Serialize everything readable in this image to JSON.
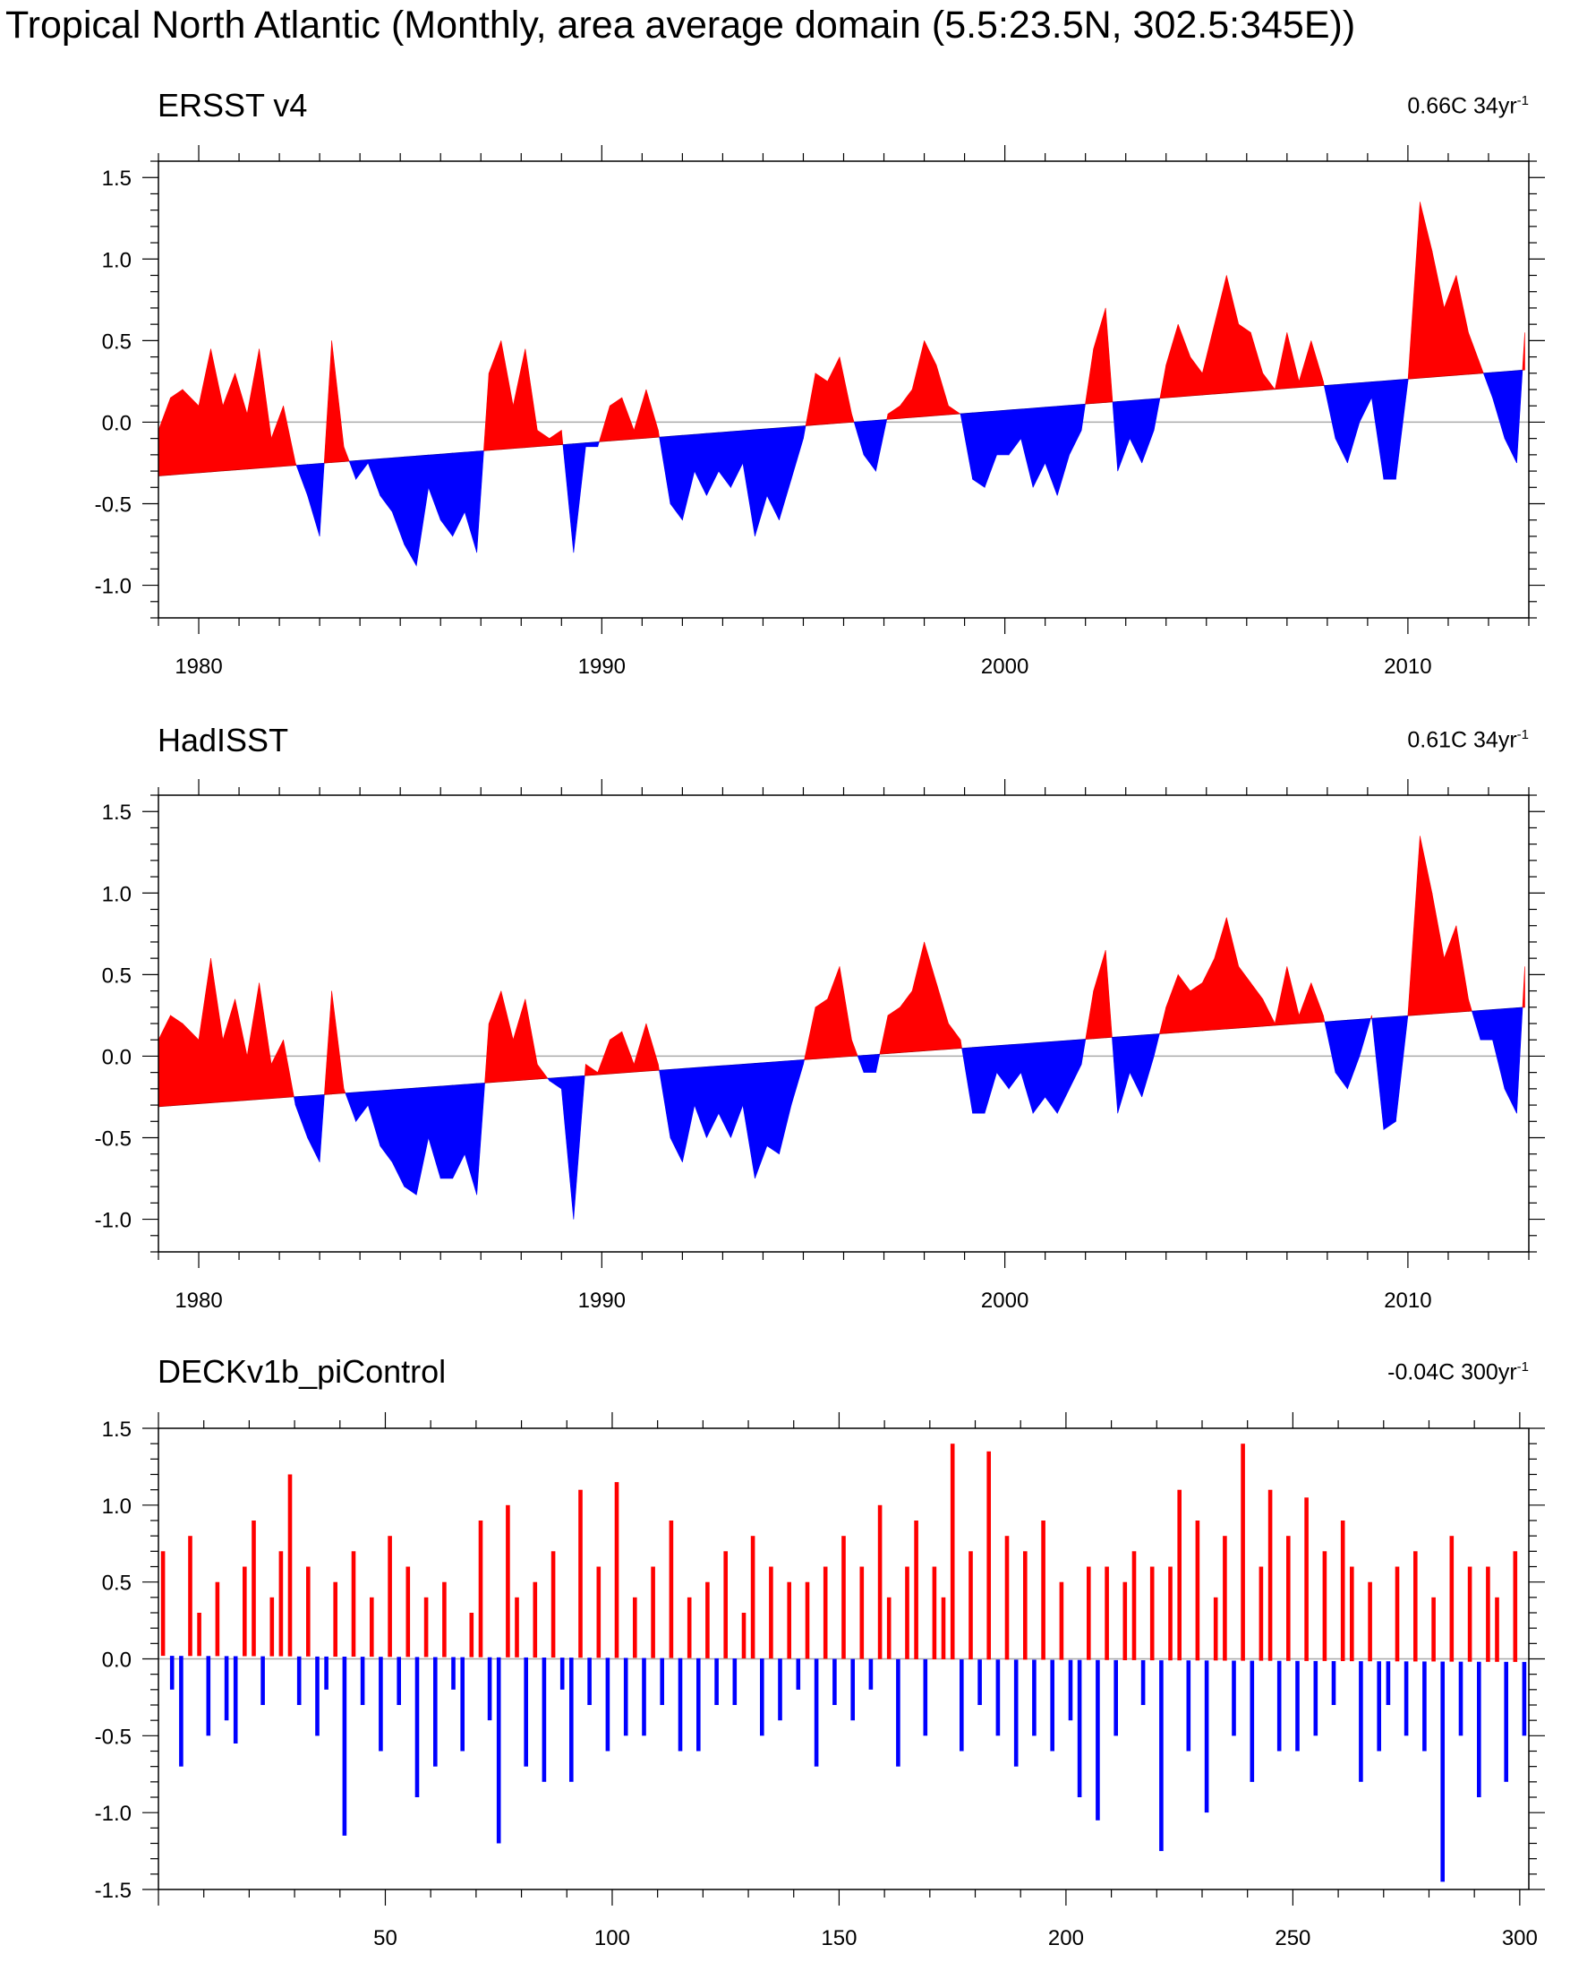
{
  "main_title": "Tropical North Atlantic (Monthly, area average domain (5.5:23.5N, 302.5:345E))",
  "colors": {
    "positive": "#ff0000",
    "negative": "#0000ff",
    "zero_line": "#aaaaaa",
    "frame": "#000000"
  },
  "chart_data": [
    {
      "type": "area",
      "title": "ERSST v4",
      "trend_value": "0.66C 34yr",
      "trend_unit_exponent": "-1",
      "xlim": [
        1979.0,
        2013.0
      ],
      "ylim": [
        -1.2,
        1.6
      ],
      "x_ticks": [
        1980,
        1990,
        2000,
        2010
      ],
      "x_tick_labels": [
        "1980",
        "1990",
        "2000",
        "2010"
      ],
      "y_ticks": [
        -1.0,
        -0.5,
        0.0,
        0.5,
        1.0,
        1.5
      ],
      "y_tick_labels": [
        "-1.0",
        "-0.5",
        "0.0",
        "0.5",
        "1.0",
        "1.5"
      ],
      "baseline": {
        "description": "linear trend",
        "start": [
          1979.0,
          -0.33
        ],
        "end": [
          2012.9,
          0.32
        ]
      },
      "x": [
        1979.0,
        1979.3,
        1979.6,
        1980.0,
        1980.3,
        1980.6,
        1980.9,
        1981.2,
        1981.5,
        1981.8,
        1982.1,
        1982.4,
        1982.7,
        1983.0,
        1983.3,
        1983.6,
        1983.9,
        1984.2,
        1984.5,
        1984.8,
        1985.1,
        1985.4,
        1985.7,
        1986.0,
        1986.3,
        1986.6,
        1986.9,
        1987.2,
        1987.5,
        1987.8,
        1988.1,
        1988.4,
        1988.7,
        1989.0,
        1989.3,
        1989.6,
        1989.9,
        1990.2,
        1990.5,
        1990.8,
        1991.1,
        1991.4,
        1991.7,
        1992.0,
        1992.3,
        1992.6,
        1992.9,
        1993.2,
        1993.5,
        1993.8,
        1994.1,
        1994.4,
        1994.7,
        1995.0,
        1995.3,
        1995.6,
        1995.9,
        1996.2,
        1996.5,
        1996.8,
        1997.1,
        1997.4,
        1997.7,
        1998.0,
        1998.3,
        1998.6,
        1998.9,
        1999.2,
        1999.5,
        1999.8,
        2000.1,
        2000.4,
        2000.7,
        2001.0,
        2001.3,
        2001.6,
        2001.9,
        2002.2,
        2002.5,
        2002.8,
        2003.1,
        2003.4,
        2003.7,
        2004.0,
        2004.3,
        2004.6,
        2004.9,
        2005.2,
        2005.5,
        2005.8,
        2006.1,
        2006.4,
        2006.7,
        2007.0,
        2007.3,
        2007.6,
        2007.9,
        2008.2,
        2008.5,
        2008.8,
        2009.1,
        2009.4,
        2009.7,
        2010.0,
        2010.3,
        2010.6,
        2010.9,
        2011.2,
        2011.5,
        2011.8,
        2012.1,
        2012.4,
        2012.7,
        2012.9
      ],
      "values": [
        -0.05,
        0.15,
        0.2,
        0.1,
        0.45,
        0.1,
        0.3,
        0.05,
        0.45,
        -0.1,
        0.1,
        -0.25,
        -0.45,
        -0.7,
        0.5,
        -0.15,
        -0.35,
        -0.25,
        -0.45,
        -0.55,
        -0.75,
        -0.88,
        -0.4,
        -0.6,
        -0.7,
        -0.55,
        -0.8,
        0.3,
        0.5,
        0.1,
        0.45,
        -0.05,
        -0.1,
        -0.05,
        -0.8,
        -0.15,
        -0.15,
        0.1,
        0.15,
        -0.05,
        0.2,
        -0.05,
        -0.5,
        -0.6,
        -0.3,
        -0.45,
        -0.3,
        -0.4,
        -0.25,
        -0.7,
        -0.45,
        -0.6,
        -0.35,
        -0.1,
        0.3,
        0.25,
        0.4,
        0.05,
        -0.2,
        -0.3,
        0.05,
        0.1,
        0.2,
        0.5,
        0.35,
        0.1,
        0.05,
        -0.35,
        -0.4,
        -0.2,
        -0.2,
        -0.1,
        -0.4,
        -0.25,
        -0.45,
        -0.2,
        -0.05,
        0.45,
        0.7,
        -0.3,
        -0.1,
        -0.25,
        -0.05,
        0.35,
        0.6,
        0.4,
        0.3,
        0.6,
        0.9,
        0.6,
        0.55,
        0.3,
        0.2,
        0.55,
        0.25,
        0.5,
        0.25,
        -0.1,
        -0.25,
        0.0,
        0.15,
        -0.35,
        -0.35,
        0.25,
        1.35,
        1.05,
        0.7,
        0.9,
        0.55,
        0.35,
        0.15,
        -0.1,
        -0.25,
        0.55
      ]
    },
    {
      "type": "area",
      "title": "HadISST",
      "trend_value": "0.61C 34yr",
      "trend_unit_exponent": "-1",
      "xlim": [
        1979.0,
        2013.0
      ],
      "ylim": [
        -1.2,
        1.6
      ],
      "x_ticks": [
        1980,
        1990,
        2000,
        2010
      ],
      "x_tick_labels": [
        "1980",
        "1990",
        "2000",
        "2010"
      ],
      "y_ticks": [
        -1.0,
        -0.5,
        0.0,
        0.5,
        1.0,
        1.5
      ],
      "y_tick_labels": [
        "-1.0",
        "-0.5",
        "0.0",
        "0.5",
        "1.0",
        "1.5"
      ],
      "baseline": {
        "description": "linear trend",
        "start": [
          1979.0,
          -0.31
        ],
        "end": [
          2012.9,
          0.3
        ]
      },
      "x": [
        1979.0,
        1979.3,
        1979.6,
        1980.0,
        1980.3,
        1980.6,
        1980.9,
        1981.2,
        1981.5,
        1981.8,
        1982.1,
        1982.4,
        1982.7,
        1983.0,
        1983.3,
        1983.6,
        1983.9,
        1984.2,
        1984.5,
        1984.8,
        1985.1,
        1985.4,
        1985.7,
        1986.0,
        1986.3,
        1986.6,
        1986.9,
        1987.2,
        1987.5,
        1987.8,
        1988.1,
        1988.4,
        1988.7,
        1989.0,
        1989.3,
        1989.6,
        1989.9,
        1990.2,
        1990.5,
        1990.8,
        1991.1,
        1991.4,
        1991.7,
        1992.0,
        1992.3,
        1992.6,
        1992.9,
        1993.2,
        1993.5,
        1993.8,
        1994.1,
        1994.4,
        1994.7,
        1995.0,
        1995.3,
        1995.6,
        1995.9,
        1996.2,
        1996.5,
        1996.8,
        1997.1,
        1997.4,
        1997.7,
        1998.0,
        1998.3,
        1998.6,
        1998.9,
        1999.2,
        1999.5,
        1999.8,
        2000.1,
        2000.4,
        2000.7,
        2001.0,
        2001.3,
        2001.6,
        2001.9,
        2002.2,
        2002.5,
        2002.8,
        2003.1,
        2003.4,
        2003.7,
        2004.0,
        2004.3,
        2004.6,
        2004.9,
        2005.2,
        2005.5,
        2005.8,
        2006.1,
        2006.4,
        2006.7,
        2007.0,
        2007.3,
        2007.6,
        2007.9,
        2008.2,
        2008.5,
        2008.8,
        2009.1,
        2009.4,
        2009.7,
        2010.0,
        2010.3,
        2010.6,
        2010.9,
        2011.2,
        2011.5,
        2011.8,
        2012.1,
        2012.4,
        2012.7,
        2012.9
      ],
      "values": [
        0.1,
        0.25,
        0.2,
        0.1,
        0.6,
        0.1,
        0.35,
        0.0,
        0.45,
        -0.05,
        0.1,
        -0.3,
        -0.5,
        -0.65,
        0.4,
        -0.2,
        -0.4,
        -0.3,
        -0.55,
        -0.65,
        -0.8,
        -0.85,
        -0.5,
        -0.75,
        -0.75,
        -0.6,
        -0.85,
        0.2,
        0.4,
        0.1,
        0.35,
        -0.05,
        -0.15,
        -0.2,
        -1.0,
        -0.05,
        -0.1,
        0.1,
        0.15,
        -0.05,
        0.2,
        -0.05,
        -0.5,
        -0.65,
        -0.3,
        -0.5,
        -0.35,
        -0.5,
        -0.3,
        -0.75,
        -0.55,
        -0.6,
        -0.3,
        -0.05,
        0.3,
        0.35,
        0.55,
        0.1,
        -0.1,
        -0.1,
        0.25,
        0.3,
        0.4,
        0.7,
        0.45,
        0.2,
        0.1,
        -0.35,
        -0.35,
        -0.1,
        -0.2,
        -0.1,
        -0.35,
        -0.25,
        -0.35,
        -0.2,
        -0.05,
        0.4,
        0.65,
        -0.35,
        -0.1,
        -0.25,
        0.0,
        0.3,
        0.5,
        0.4,
        0.45,
        0.6,
        0.85,
        0.55,
        0.45,
        0.35,
        0.2,
        0.55,
        0.25,
        0.45,
        0.25,
        -0.1,
        -0.2,
        0.0,
        0.25,
        -0.45,
        -0.4,
        0.25,
        1.35,
        1.0,
        0.6,
        0.8,
        0.35,
        0.1,
        0.1,
        -0.2,
        -0.35,
        0.55
      ]
    },
    {
      "type": "area",
      "title": "DECKv1b_piControl",
      "trend_value": "-0.04C 300yr",
      "trend_unit_exponent": "-1",
      "xlim": [
        0,
        302
      ],
      "ylim": [
        -1.5,
        1.5
      ],
      "x_ticks": [
        50,
        100,
        150,
        200,
        250,
        300
      ],
      "x_tick_labels": [
        "50",
        "100",
        "150",
        "200",
        "250",
        "300"
      ],
      "y_ticks": [
        -1.5,
        -1.0,
        -0.5,
        0.0,
        0.5,
        1.0,
        1.5
      ],
      "y_tick_labels": [
        "-1.5",
        "-1.0",
        "-0.5",
        "0.0",
        "0.5",
        "1.0",
        "1.5"
      ],
      "baseline": {
        "description": "linear trend",
        "start": [
          0,
          0.02
        ],
        "end": [
          301,
          -0.02
        ]
      },
      "x": [
        1,
        3,
        5,
        7,
        9,
        11,
        13,
        15,
        17,
        19,
        21,
        23,
        25,
        27,
        29,
        31,
        33,
        35,
        37,
        39,
        41,
        43,
        45,
        47,
        49,
        51,
        53,
        55,
        57,
        59,
        61,
        63,
        65,
        67,
        69,
        71,
        73,
        75,
        77,
        79,
        81,
        83,
        85,
        87,
        89,
        91,
        93,
        95,
        97,
        99,
        101,
        103,
        105,
        107,
        109,
        111,
        113,
        115,
        117,
        119,
        121,
        123,
        125,
        127,
        129,
        131,
        133,
        135,
        137,
        139,
        141,
        143,
        145,
        147,
        149,
        151,
        153,
        155,
        157,
        159,
        161,
        163,
        165,
        167,
        169,
        171,
        173,
        175,
        177,
        179,
        181,
        183,
        185,
        187,
        189,
        191,
        193,
        195,
        197,
        199,
        201,
        203,
        205,
        207,
        209,
        211,
        213,
        215,
        217,
        219,
        221,
        223,
        225,
        227,
        229,
        231,
        233,
        235,
        237,
        239,
        241,
        243,
        245,
        247,
        249,
        251,
        253,
        255,
        257,
        259,
        261,
        263,
        265,
        267,
        269,
        271,
        273,
        275,
        277,
        279,
        281,
        283,
        285,
        287,
        289,
        291,
        293,
        295,
        297,
        299,
        301
      ],
      "values": [
        0.7,
        -0.2,
        -0.7,
        0.8,
        0.3,
        -0.5,
        0.5,
        -0.4,
        -0.55,
        0.6,
        0.9,
        -0.3,
        0.4,
        0.7,
        1.2,
        -0.3,
        0.6,
        -0.5,
        -0.2,
        0.5,
        -1.15,
        0.7,
        -0.3,
        0.4,
        -0.6,
        0.8,
        -0.3,
        0.6,
        -0.9,
        0.4,
        -0.7,
        0.5,
        -0.2,
        -0.6,
        0.3,
        0.9,
        -0.4,
        -1.2,
        1.0,
        0.4,
        -0.7,
        0.5,
        -0.8,
        0.7,
        -0.2,
        -0.8,
        1.1,
        -0.3,
        0.6,
        -0.6,
        1.15,
        -0.5,
        0.4,
        -0.5,
        0.6,
        -0.3,
        0.9,
        -0.6,
        0.4,
        -0.6,
        0.5,
        -0.3,
        0.7,
        -0.3,
        0.3,
        0.8,
        -0.5,
        0.6,
        -0.4,
        0.5,
        -0.2,
        0.5,
        -0.7,
        0.6,
        -0.3,
        0.8,
        -0.4,
        0.6,
        -0.2,
        1.0,
        0.4,
        -0.7,
        0.6,
        0.9,
        -0.5,
        0.6,
        0.4,
        1.4,
        -0.6,
        0.7,
        -0.3,
        1.35,
        -0.5,
        0.8,
        -0.7,
        0.7,
        -0.5,
        0.9,
        -0.6,
        0.5,
        -0.4,
        -0.9,
        0.6,
        -1.05,
        0.6,
        -0.5,
        0.5,
        0.7,
        -0.3,
        0.6,
        -1.25,
        0.6,
        1.1,
        -0.6,
        0.9,
        -1.0,
        0.4,
        0.8,
        -0.5,
        1.4,
        -0.8,
        0.6,
        1.1,
        -0.6,
        0.8,
        -0.6,
        1.05,
        -0.5,
        0.7,
        -0.3,
        0.9,
        0.6,
        -0.8,
        0.5,
        -0.6,
        -0.3,
        0.6,
        -0.5,
        0.7,
        -0.6,
        0.4,
        -1.45,
        0.8,
        -0.5,
        0.6,
        -0.9,
        0.6,
        0.4,
        -0.8,
        0.7,
        -0.5
      ]
    }
  ]
}
